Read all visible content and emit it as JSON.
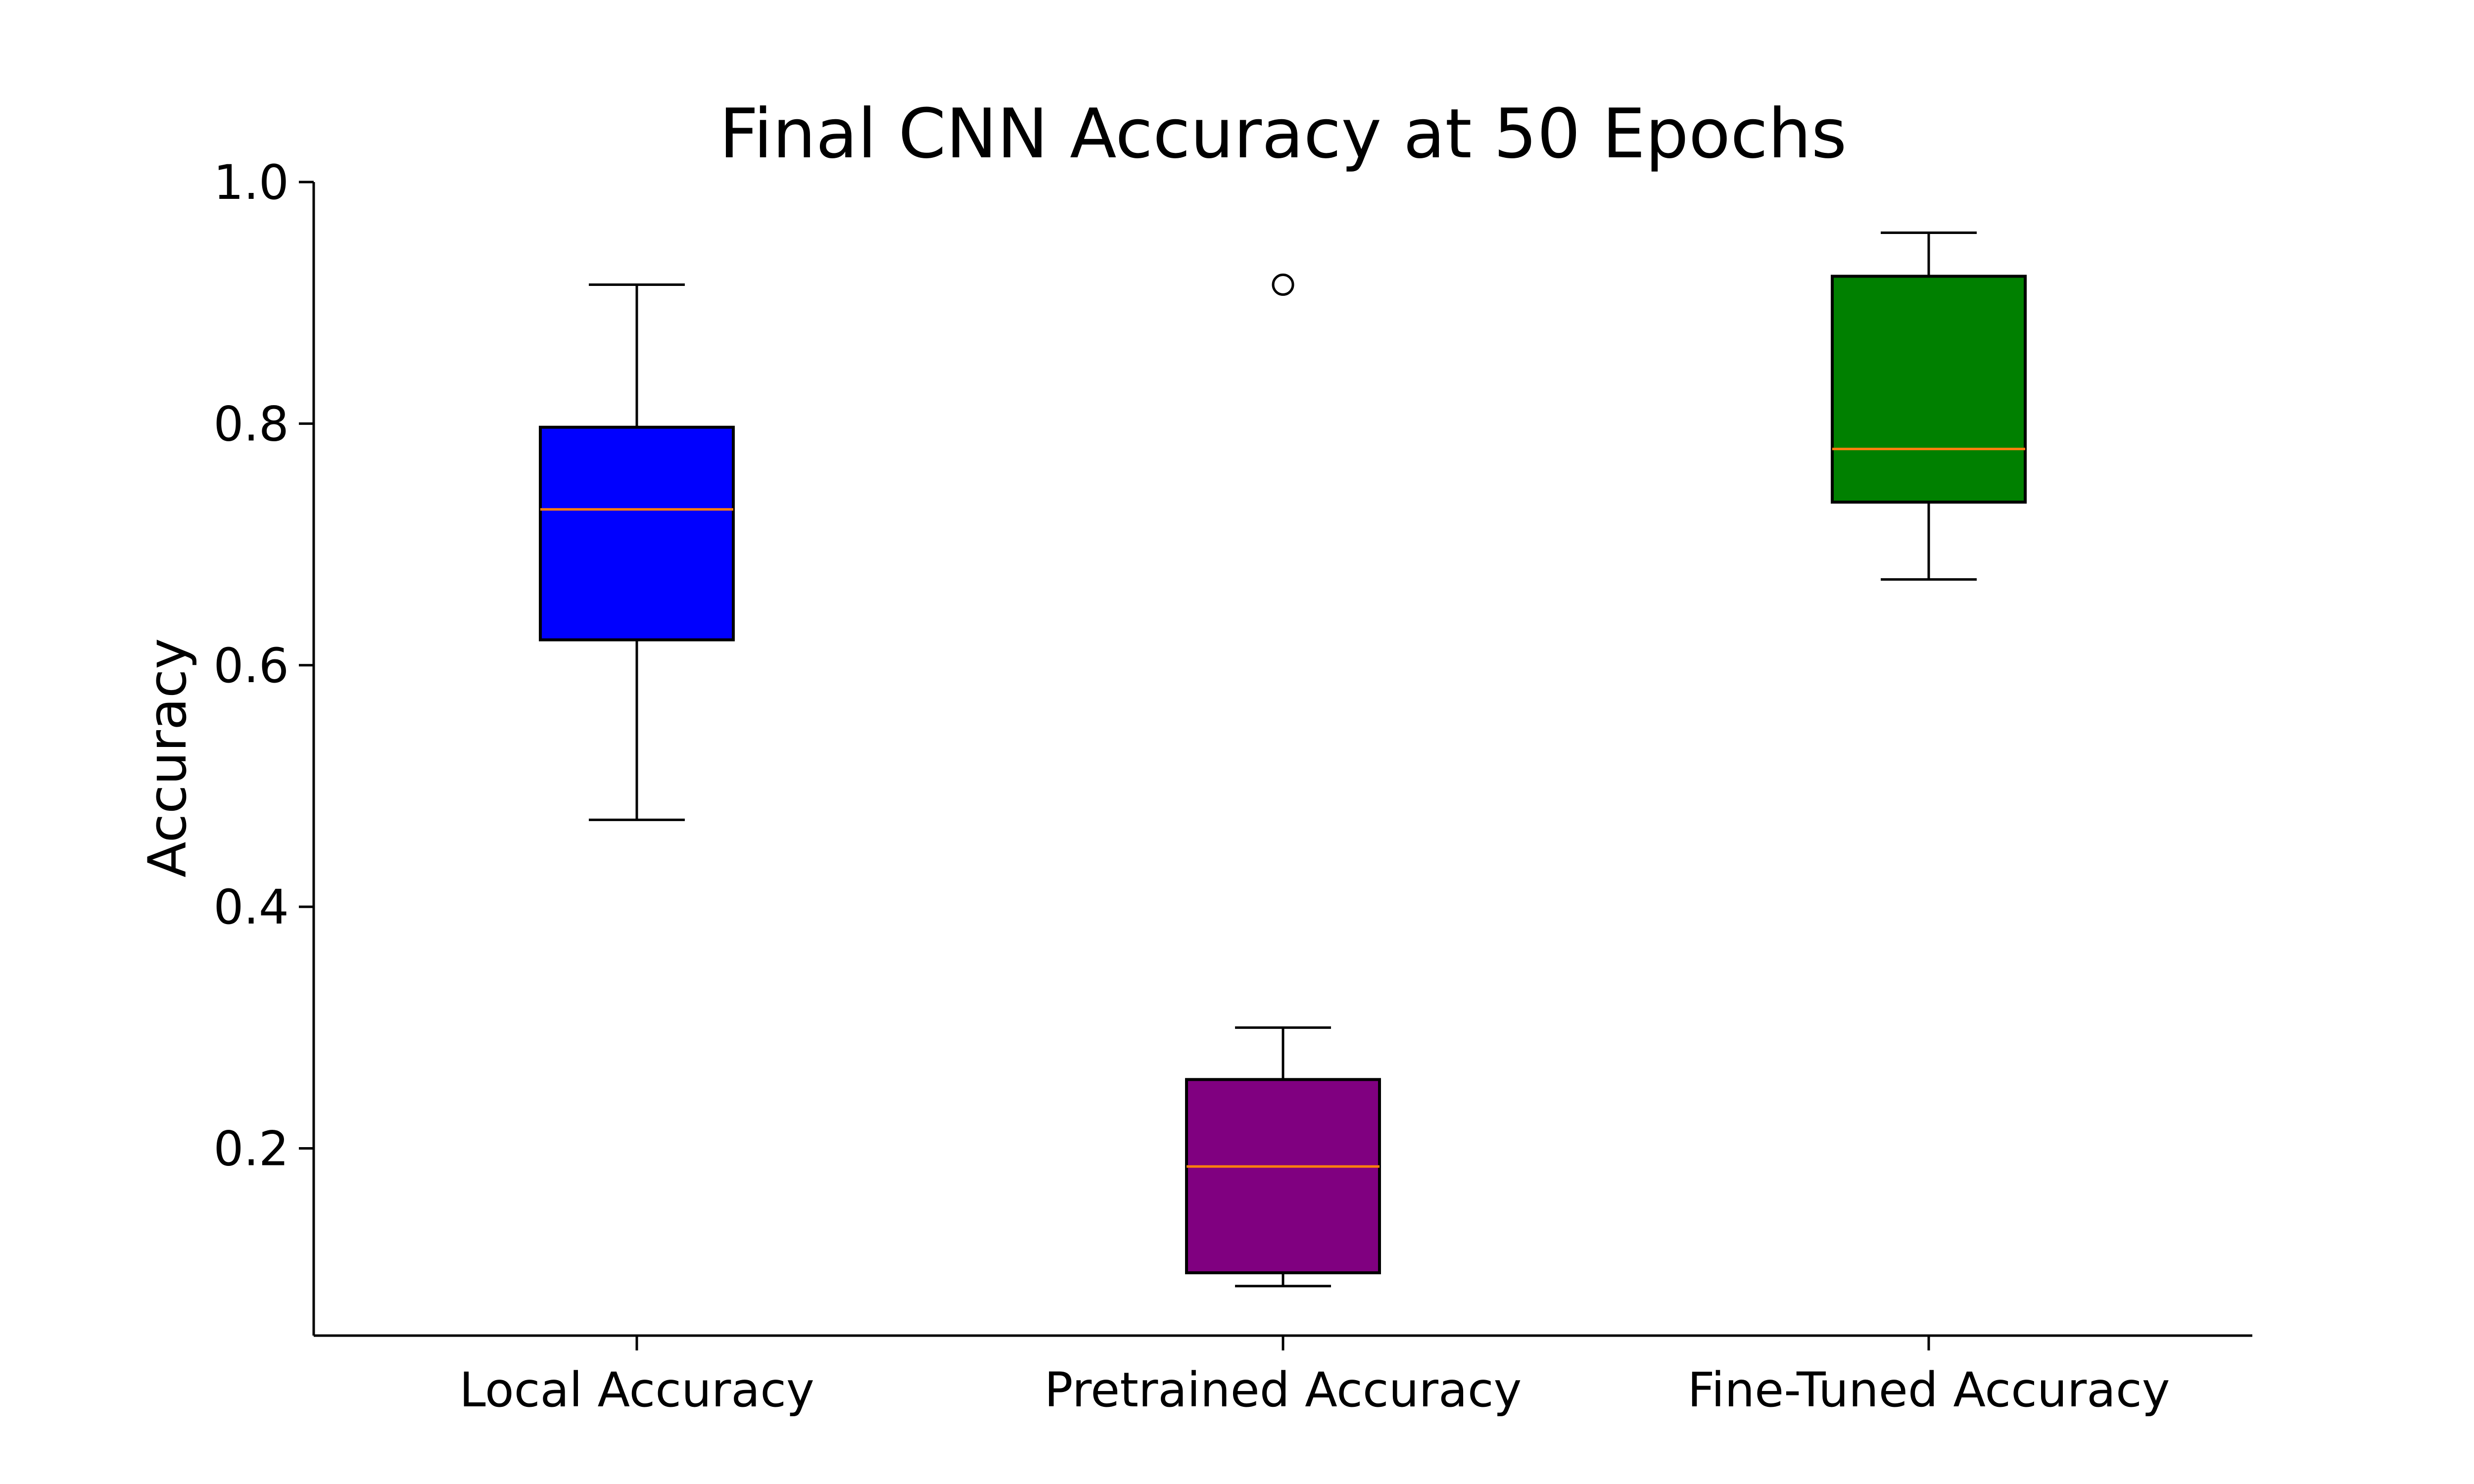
{
  "chart_data": {
    "type": "box",
    "title": "Final CNN Accuracy at 50 Epochs",
    "xlabel": "",
    "ylabel": "Accuracy",
    "ylim": [
      0.045,
      1.0
    ],
    "yticks": [
      0.2,
      0.4,
      0.6,
      0.8,
      1.0
    ],
    "ytick_labels": [
      "0.2",
      "0.4",
      "0.6",
      "0.8",
      "1.0"
    ],
    "grid": false,
    "categories": [
      "Local Accuracy",
      "Pretrained Accuracy",
      "Fine-Tuned Accuracy"
    ],
    "boxes": [
      {
        "category": "Local Accuracy",
        "whisker_low": 0.472,
        "q1": 0.621,
        "median": 0.729,
        "q3": 0.797,
        "whisker_high": 0.915,
        "outliers": [],
        "color": "#0000ff"
      },
      {
        "category": "Pretrained Accuracy",
        "whisker_low": 0.086,
        "q1": 0.097,
        "median": 0.185,
        "q3": 0.257,
        "whisker_high": 0.3,
        "outliers": [
          0.915
        ],
        "color": "#800080"
      },
      {
        "category": "Fine-Tuned Accuracy",
        "whisker_low": 0.671,
        "q1": 0.735,
        "median": 0.779,
        "q3": 0.922,
        "whisker_high": 0.958,
        "outliers": [],
        "color": "#008000"
      }
    ],
    "median_color": "#ff7f0e"
  }
}
